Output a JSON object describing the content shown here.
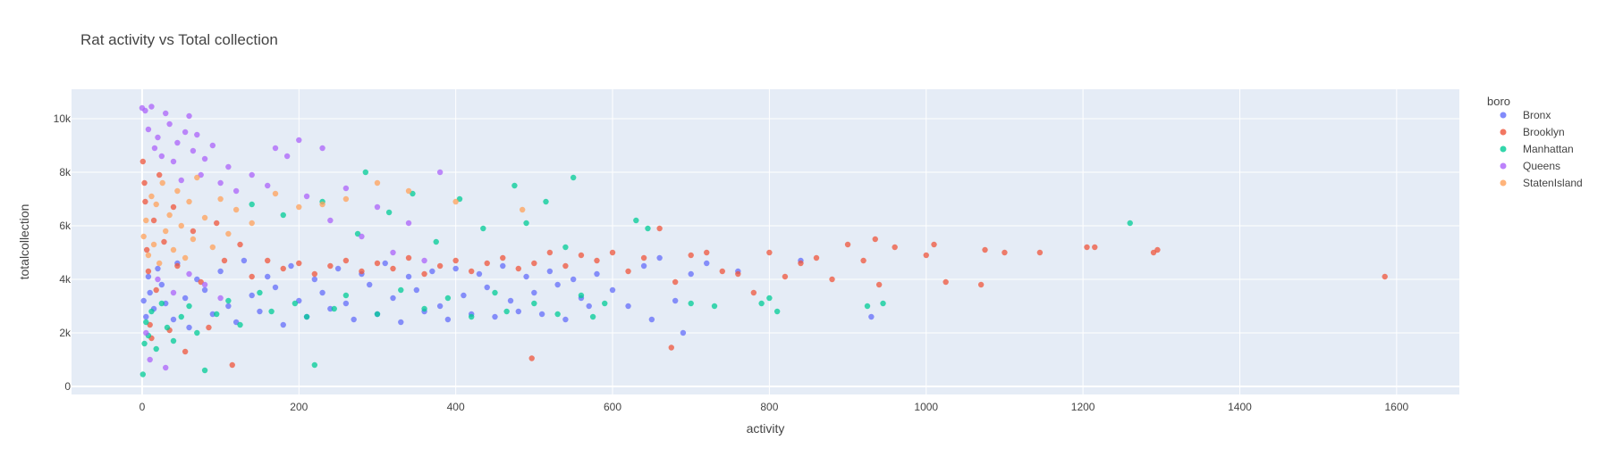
{
  "chart_data": {
    "type": "scatter",
    "title": "Rat activity vs Total collection",
    "xlabel": "activity",
    "ylabel": "totalcollection",
    "xlim": [
      -90,
      1680
    ],
    "ylim": [
      -300,
      11100
    ],
    "xticks": [
      0,
      200,
      400,
      600,
      800,
      1000,
      1200,
      1400,
      1600
    ],
    "xtick_labels": [
      "0",
      "200",
      "400",
      "600",
      "800",
      "1000",
      "1200",
      "1400",
      "1600"
    ],
    "yticks": [
      0,
      2000,
      4000,
      6000,
      8000,
      10000
    ],
    "ytick_labels": [
      "0",
      "2k",
      "4k",
      "6k",
      "8k",
      "10k"
    ],
    "grid": true,
    "background": "#e5ecf6",
    "legend": {
      "title": "boro",
      "placement": "right"
    },
    "series": [
      {
        "name": "Bronx",
        "color": "#636efa",
        "points": [
          [
            2,
            3200
          ],
          [
            5,
            2600
          ],
          [
            8,
            4100
          ],
          [
            10,
            3500
          ],
          [
            15,
            2900
          ],
          [
            20,
            4400
          ],
          [
            25,
            3800
          ],
          [
            30,
            3100
          ],
          [
            40,
            2500
          ],
          [
            45,
            4600
          ],
          [
            55,
            3300
          ],
          [
            60,
            2200
          ],
          [
            70,
            4000
          ],
          [
            80,
            3600
          ],
          [
            90,
            2700
          ],
          [
            100,
            4300
          ],
          [
            110,
            3000
          ],
          [
            120,
            2400
          ],
          [
            130,
            4700
          ],
          [
            140,
            3400
          ],
          [
            150,
            2800
          ],
          [
            160,
            4100
          ],
          [
            170,
            3700
          ],
          [
            180,
            2300
          ],
          [
            190,
            4500
          ],
          [
            200,
            3200
          ],
          [
            210,
            2600
          ],
          [
            220,
            4000
          ],
          [
            230,
            3500
          ],
          [
            240,
            2900
          ],
          [
            250,
            4400
          ],
          [
            260,
            3100
          ],
          [
            270,
            2500
          ],
          [
            280,
            4200
          ],
          [
            290,
            3800
          ],
          [
            300,
            2700
          ],
          [
            310,
            4600
          ],
          [
            320,
            3300
          ],
          [
            330,
            2400
          ],
          [
            340,
            4100
          ],
          [
            350,
            3600
          ],
          [
            360,
            2800
          ],
          [
            370,
            4300
          ],
          [
            380,
            3000
          ],
          [
            390,
            2500
          ],
          [
            400,
            4400
          ],
          [
            410,
            3400
          ],
          [
            420,
            2700
          ],
          [
            430,
            4200
          ],
          [
            440,
            3700
          ],
          [
            450,
            2600
          ],
          [
            460,
            4500
          ],
          [
            470,
            3200
          ],
          [
            480,
            2800
          ],
          [
            490,
            4100
          ],
          [
            500,
            3500
          ],
          [
            510,
            2700
          ],
          [
            520,
            4300
          ],
          [
            530,
            3800
          ],
          [
            540,
            2500
          ],
          [
            550,
            4000
          ],
          [
            560,
            3300
          ],
          [
            570,
            3000
          ],
          [
            580,
            4200
          ],
          [
            600,
            3600
          ],
          [
            620,
            3000
          ],
          [
            640,
            4500
          ],
          [
            650,
            2500
          ],
          [
            660,
            4800
          ],
          [
            680,
            3200
          ],
          [
            690,
            2000
          ],
          [
            700,
            4200
          ],
          [
            720,
            4600
          ],
          [
            760,
            4300
          ],
          [
            840,
            4700
          ],
          [
            930,
            2600
          ]
        ]
      },
      {
        "name": "Brooklyn",
        "color": "#ef553b",
        "points": [
          [
            1,
            8400
          ],
          [
            3,
            7600
          ],
          [
            4,
            6900
          ],
          [
            6,
            5100
          ],
          [
            8,
            4300
          ],
          [
            10,
            2300
          ],
          [
            12,
            1800
          ],
          [
            15,
            6200
          ],
          [
            18,
            3600
          ],
          [
            22,
            7900
          ],
          [
            28,
            5400
          ],
          [
            35,
            2100
          ],
          [
            40,
            6700
          ],
          [
            45,
            4500
          ],
          [
            55,
            1300
          ],
          [
            65,
            5800
          ],
          [
            75,
            3900
          ],
          [
            85,
            2200
          ],
          [
            95,
            6100
          ],
          [
            105,
            4700
          ],
          [
            115,
            800
          ],
          [
            125,
            5300
          ],
          [
            140,
            4100
          ],
          [
            160,
            4700
          ],
          [
            180,
            4400
          ],
          [
            200,
            4600
          ],
          [
            220,
            4200
          ],
          [
            240,
            4500
          ],
          [
            260,
            4700
          ],
          [
            280,
            4300
          ],
          [
            300,
            4600
          ],
          [
            320,
            4400
          ],
          [
            340,
            4800
          ],
          [
            360,
            4200
          ],
          [
            380,
            4500
          ],
          [
            400,
            4700
          ],
          [
            420,
            4300
          ],
          [
            440,
            4600
          ],
          [
            460,
            4800
          ],
          [
            480,
            4400
          ],
          [
            497,
            1050
          ],
          [
            500,
            4600
          ],
          [
            520,
            5000
          ],
          [
            540,
            4500
          ],
          [
            560,
            4900
          ],
          [
            580,
            4700
          ],
          [
            600,
            5000
          ],
          [
            620,
            4300
          ],
          [
            640,
            4800
          ],
          [
            660,
            5900
          ],
          [
            675,
            1450
          ],
          [
            680,
            3900
          ],
          [
            700,
            4900
          ],
          [
            720,
            5000
          ],
          [
            740,
            4300
          ],
          [
            760,
            4200
          ],
          [
            780,
            3500
          ],
          [
            800,
            5000
          ],
          [
            820,
            4100
          ],
          [
            840,
            4600
          ],
          [
            860,
            4800
          ],
          [
            880,
            4000
          ],
          [
            900,
            5300
          ],
          [
            920,
            4700
          ],
          [
            935,
            5500
          ],
          [
            940,
            3800
          ],
          [
            960,
            5200
          ],
          [
            1000,
            4900
          ],
          [
            1010,
            5300
          ],
          [
            1025,
            3900
          ],
          [
            1070,
            3800
          ],
          [
            1075,
            5100
          ],
          [
            1100,
            5000
          ],
          [
            1145,
            5000
          ],
          [
            1205,
            5200
          ],
          [
            1215,
            5200
          ],
          [
            1290,
            5000
          ],
          [
            1295,
            5100
          ],
          [
            1585,
            4100
          ]
        ]
      },
      {
        "name": "Manhattan",
        "color": "#00cc96",
        "points": [
          [
            1,
            450
          ],
          [
            3,
            1600
          ],
          [
            5,
            2400
          ],
          [
            8,
            1900
          ],
          [
            12,
            2800
          ],
          [
            18,
            1400
          ],
          [
            25,
            3100
          ],
          [
            32,
            2200
          ],
          [
            40,
            1700
          ],
          [
            50,
            2600
          ],
          [
            60,
            3000
          ],
          [
            70,
            2000
          ],
          [
            80,
            600
          ],
          [
            95,
            2700
          ],
          [
            110,
            3200
          ],
          [
            125,
            2300
          ],
          [
            140,
            6800
          ],
          [
            150,
            3500
          ],
          [
            165,
            2800
          ],
          [
            180,
            6400
          ],
          [
            195,
            3100
          ],
          [
            210,
            2600
          ],
          [
            220,
            800
          ],
          [
            230,
            6900
          ],
          [
            245,
            2900
          ],
          [
            260,
            3400
          ],
          [
            275,
            5700
          ],
          [
            285,
            8000
          ],
          [
            300,
            2700
          ],
          [
            315,
            6500
          ],
          [
            330,
            3600
          ],
          [
            345,
            7200
          ],
          [
            360,
            2900
          ],
          [
            375,
            5400
          ],
          [
            390,
            3300
          ],
          [
            405,
            7000
          ],
          [
            420,
            2600
          ],
          [
            435,
            5900
          ],
          [
            450,
            3500
          ],
          [
            465,
            2800
          ],
          [
            475,
            7500
          ],
          [
            490,
            6100
          ],
          [
            500,
            3100
          ],
          [
            515,
            6900
          ],
          [
            530,
            2700
          ],
          [
            540,
            5200
          ],
          [
            550,
            7800
          ],
          [
            560,
            3400
          ],
          [
            575,
            2600
          ],
          [
            590,
            3100
          ],
          [
            630,
            6200
          ],
          [
            645,
            5900
          ],
          [
            700,
            3100
          ],
          [
            730,
            3000
          ],
          [
            790,
            3100
          ],
          [
            800,
            3300
          ],
          [
            810,
            2800
          ],
          [
            925,
            3000
          ],
          [
            945,
            3100
          ],
          [
            1260,
            6100
          ]
        ]
      },
      {
        "name": "Queens",
        "color": "#ab63fa",
        "points": [
          [
            0,
            10400
          ],
          [
            4,
            10300
          ],
          [
            8,
            9600
          ],
          [
            12,
            10450
          ],
          [
            16,
            8900
          ],
          [
            20,
            9300
          ],
          [
            25,
            8600
          ],
          [
            30,
            10200
          ],
          [
            35,
            9800
          ],
          [
            40,
            8400
          ],
          [
            45,
            9100
          ],
          [
            50,
            7700
          ],
          [
            55,
            9500
          ],
          [
            60,
            10100
          ],
          [
            65,
            8800
          ],
          [
            70,
            9400
          ],
          [
            75,
            7900
          ],
          [
            80,
            8500
          ],
          [
            90,
            9000
          ],
          [
            100,
            7600
          ],
          [
            110,
            8200
          ],
          [
            120,
            7300
          ],
          [
            140,
            7900
          ],
          [
            160,
            7500
          ],
          [
            170,
            8900
          ],
          [
            185,
            8600
          ],
          [
            200,
            9200
          ],
          [
            210,
            7100
          ],
          [
            230,
            8900
          ],
          [
            240,
            6200
          ],
          [
            260,
            7400
          ],
          [
            280,
            5600
          ],
          [
            300,
            6700
          ],
          [
            320,
            5000
          ],
          [
            340,
            6100
          ],
          [
            360,
            4700
          ],
          [
            380,
            8000
          ],
          [
            20,
            4000
          ],
          [
            40,
            3500
          ],
          [
            60,
            4200
          ],
          [
            80,
            3800
          ],
          [
            100,
            3300
          ],
          [
            5,
            2000
          ],
          [
            10,
            1000
          ],
          [
            30,
            700
          ]
        ]
      },
      {
        "name": "StatenIsland",
        "color": "#ffa15a",
        "points": [
          [
            2,
            5600
          ],
          [
            5,
            6200
          ],
          [
            8,
            4900
          ],
          [
            12,
            7100
          ],
          [
            15,
            5300
          ],
          [
            18,
            6800
          ],
          [
            22,
            4600
          ],
          [
            26,
            7600
          ],
          [
            30,
            5800
          ],
          [
            35,
            6400
          ],
          [
            40,
            5100
          ],
          [
            45,
            7300
          ],
          [
            50,
            6000
          ],
          [
            55,
            4800
          ],
          [
            60,
            6900
          ],
          [
            65,
            5500
          ],
          [
            70,
            7800
          ],
          [
            80,
            6300
          ],
          [
            90,
            5200
          ],
          [
            100,
            7000
          ],
          [
            110,
            5700
          ],
          [
            120,
            6600
          ],
          [
            140,
            6100
          ],
          [
            170,
            7200
          ],
          [
            200,
            6700
          ],
          [
            230,
            6800
          ],
          [
            260,
            7000
          ],
          [
            300,
            7600
          ],
          [
            340,
            7300
          ],
          [
            400,
            6900
          ],
          [
            485,
            6600
          ]
        ]
      }
    ]
  }
}
